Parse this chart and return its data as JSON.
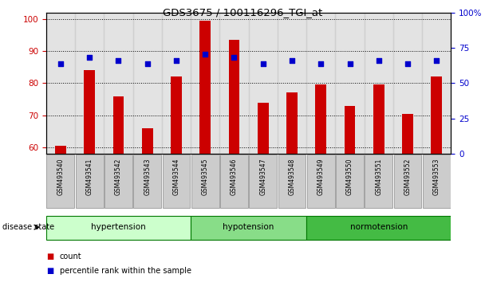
{
  "title": "GDS3675 / 100116296_TGI_at",
  "samples": [
    "GSM493540",
    "GSM493541",
    "GSM493542",
    "GSM493543",
    "GSM493544",
    "GSM493545",
    "GSM493546",
    "GSM493547",
    "GSM493548",
    "GSM493549",
    "GSM493550",
    "GSM493551",
    "GSM493552",
    "GSM493553"
  ],
  "count_values": [
    60.5,
    84,
    76,
    66,
    82,
    99.5,
    93.5,
    74,
    77,
    79.5,
    73,
    79.5,
    70.5,
    82
  ],
  "percentile_values": [
    86,
    88,
    87,
    86,
    87,
    89,
    88,
    86,
    87,
    86,
    86,
    87,
    86,
    87
  ],
  "ylim_left": [
    58,
    102
  ],
  "ylim_right": [
    0,
    100
  ],
  "yticks_left": [
    60,
    70,
    80,
    90,
    100
  ],
  "yticks_right": [
    0,
    25,
    50,
    75,
    100
  ],
  "ytick_labels_right": [
    "0",
    "25",
    "50",
    "75",
    "100%"
  ],
  "groups": [
    {
      "label": "hypertension",
      "start": 0,
      "end": 4,
      "color": "#ccffcc"
    },
    {
      "label": "hypotension",
      "start": 5,
      "end": 8,
      "color": "#88dd88"
    },
    {
      "label": "normotension",
      "start": 9,
      "end": 13,
      "color": "#44bb44"
    }
  ],
  "disease_state_label": "disease state",
  "legend_items": [
    {
      "color": "#cc0000",
      "label": "count"
    },
    {
      "color": "#0000cc",
      "label": "percentile rank within the sample"
    }
  ],
  "bar_color": "#cc0000",
  "dot_color": "#0000cc",
  "title_color": "#000000",
  "left_axis_color": "#cc0000",
  "right_axis_color": "#0000cc",
  "grid_color": "#000000",
  "sample_bg_color": "#cccccc",
  "background_color": "#ffffff"
}
